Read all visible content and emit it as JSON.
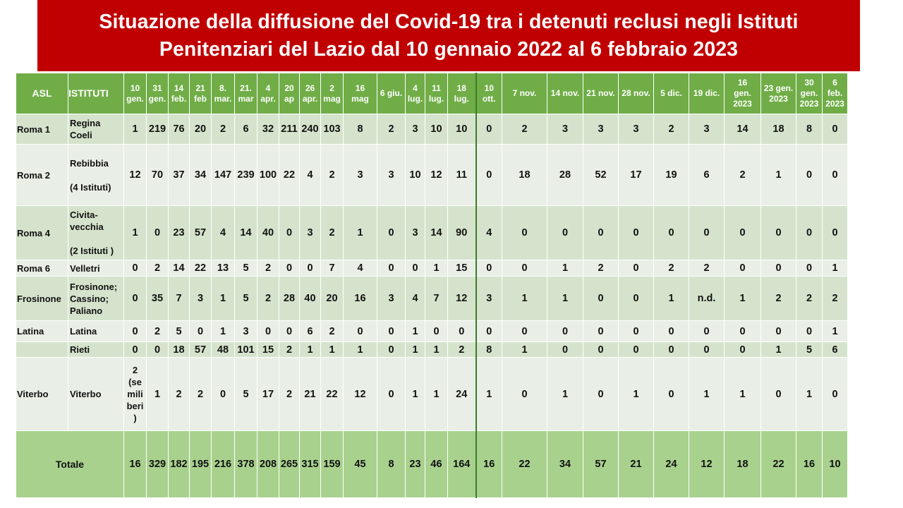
{
  "title": {
    "line1": "Situazione della diffusione del Covid-19 tra i detenuti reclusi negli Istituti",
    "line2": "Penitenziari  del Lazio dal 10 gennaio 2022 al 6 febbraio 2023"
  },
  "header": {
    "asl": "ASL",
    "istituti": "ISTITUTI",
    "dates": [
      [
        "10",
        "gen."
      ],
      [
        "31",
        "gen."
      ],
      [
        "14",
        "feb."
      ],
      [
        "21",
        "feb"
      ],
      [
        "8.",
        "mar."
      ],
      [
        "21.",
        "mar"
      ],
      [
        "4",
        "apr."
      ],
      [
        "20",
        "ap"
      ],
      [
        "26",
        "apr."
      ],
      [
        "2",
        "mag"
      ],
      [
        "16",
        "mag"
      ],
      [
        "6 giu."
      ],
      [
        "4",
        "lug."
      ],
      [
        "11",
        "lug."
      ],
      [
        "18",
        "lug."
      ],
      [
        "10",
        "ott."
      ],
      [
        "7 nov."
      ],
      [
        "14 nov."
      ],
      [
        "21 nov."
      ],
      [
        "28 nov."
      ],
      [
        "5 dic."
      ],
      [
        "19 dic."
      ],
      [
        "16",
        "gen.",
        "2023"
      ],
      [
        "23 gen.",
        "2023"
      ],
      [
        "30",
        "gen.",
        "2023"
      ],
      [
        "6",
        "feb.",
        "2023"
      ]
    ]
  },
  "rows": [
    {
      "asl": "Roma 1",
      "istituto": [
        "Regina",
        "Coeli"
      ],
      "values": [
        "1",
        "219",
        "76",
        "20",
        "2",
        "6",
        "32",
        "211",
        "240",
        "103",
        "8",
        "2",
        "3",
        "10",
        "10",
        "0",
        "2",
        "3",
        "3",
        "3",
        "2",
        "3",
        "14",
        "18",
        "8",
        "0"
      ]
    },
    {
      "asl": "Roma 2",
      "istituto": [
        "Rebibbia",
        "",
        "(4 Istituti)"
      ],
      "values": [
        "12",
        "70",
        "37",
        "34",
        "147",
        "239",
        "100",
        "22",
        "4",
        "2",
        "3",
        "3",
        "10",
        "12",
        "11",
        "0",
        "18",
        "28",
        "52",
        "17",
        "19",
        "6",
        "2",
        "1",
        "0",
        "0"
      ]
    },
    {
      "asl": "Roma 4",
      "istituto": [
        "Civita-",
        "vecchia",
        "",
        "(2 Istituti )"
      ],
      "values": [
        "1",
        "0",
        "23",
        "57",
        "4",
        "14",
        "40",
        "0",
        "3",
        "2",
        "1",
        "0",
        "3",
        "14",
        "90",
        "4",
        "0",
        "0",
        "0",
        "0",
        "0",
        "0",
        "0",
        "0",
        "0",
        "0"
      ]
    },
    {
      "asl": "Roma 6",
      "istituto": [
        "Velletri"
      ],
      "values": [
        "0",
        "2",
        "14",
        "22",
        "13",
        "5",
        "2",
        "0",
        "0",
        "7",
        "4",
        "0",
        "0",
        "1",
        "15",
        "0",
        "0",
        "1",
        "2",
        "0",
        "2",
        "2",
        "0",
        "0",
        "0",
        "1"
      ]
    },
    {
      "asl": "Frosinone",
      "istituto": [
        "Frosinone;",
        "Cassino;",
        "Paliano"
      ],
      "values": [
        "0",
        "35",
        "7",
        "3",
        "1",
        "5",
        "2",
        "28",
        "40",
        "20",
        "16",
        "3",
        "4",
        "7",
        "12",
        "3",
        "1",
        "1",
        "0",
        "0",
        "1",
        "n.d.",
        "1",
        "2",
        "2",
        "2"
      ]
    },
    {
      "asl": "Latina",
      "istituto": [
        "Latina"
      ],
      "values": [
        "0",
        "2",
        "5",
        "0",
        "1",
        "3",
        "0",
        "0",
        "6",
        "2",
        "0",
        "0",
        "1",
        "0",
        "0",
        "0",
        "0",
        "0",
        "0",
        "0",
        "0",
        "0",
        "0",
        "0",
        "0",
        "1"
      ]
    },
    {
      "asl": "",
      "istituto": [
        "Rieti"
      ],
      "values": [
        "0",
        "0",
        "18",
        "57",
        "48",
        "101",
        "15",
        "2",
        "1",
        "1",
        "1",
        "0",
        "1",
        "1",
        "2",
        "8",
        "1",
        "0",
        "0",
        "0",
        "0",
        "0",
        "0",
        "1",
        "5",
        "6"
      ]
    },
    {
      "asl": "Viterbo",
      "istituto": [
        "Viterbo"
      ],
      "values": [
        [
          "2",
          "(se",
          "mili",
          "beri",
          ")"
        ],
        "1",
        "2",
        "2",
        "0",
        "5",
        "17",
        "2",
        "21",
        "22",
        "12",
        "0",
        "1",
        "1",
        "24",
        "1",
        "0",
        "1",
        "0",
        "1",
        "0",
        "1",
        "1",
        "0",
        "1",
        "0"
      ]
    }
  ],
  "total": {
    "label": "Totale",
    "values": [
      "16",
      "329",
      "182",
      "195",
      "216",
      "378",
      "208",
      "265",
      "315",
      "159",
      "45",
      "8",
      "23",
      "46",
      "164",
      "16",
      "22",
      "34",
      "57",
      "21",
      "24",
      "12",
      "18",
      "22",
      "16",
      "10"
    ]
  },
  "colors": {
    "title_bg": "#c00000",
    "header_bg": "#70ad47",
    "row_dark": "#d5e3cc",
    "row_light": "#e9efe6",
    "total_bg": "#a9d18e"
  }
}
